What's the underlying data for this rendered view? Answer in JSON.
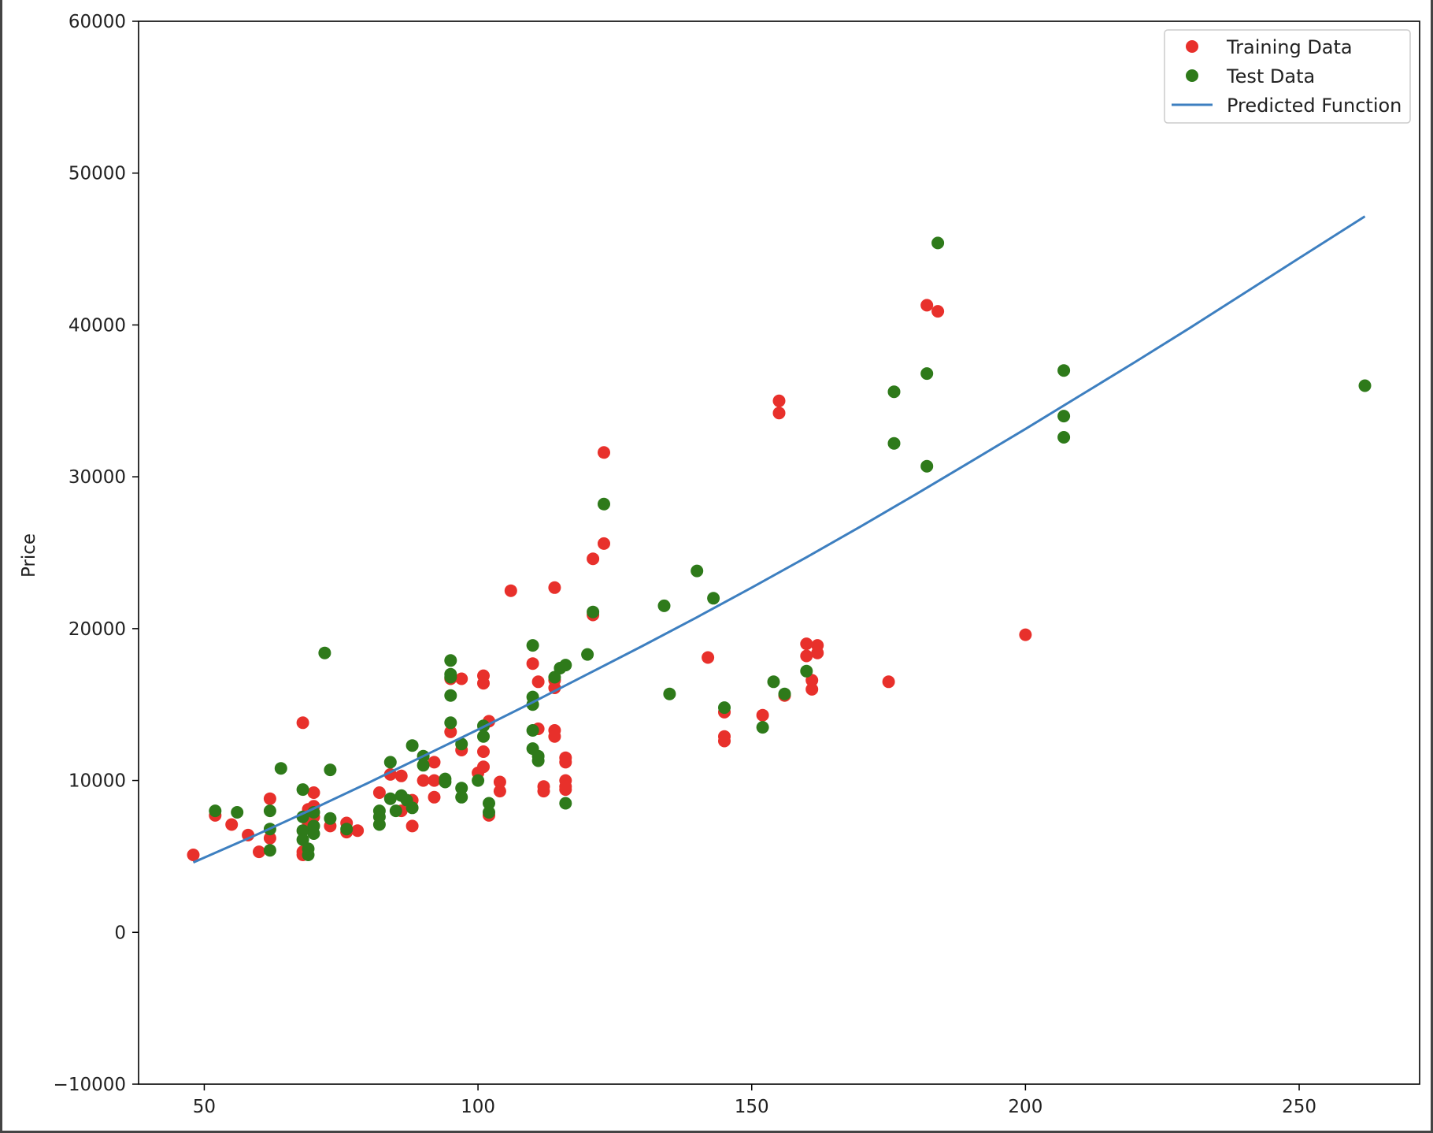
{
  "colors": {
    "training": "#e8302b",
    "test": "#2e7a1a",
    "line": "#3d7fc0",
    "axis": "#000000"
  },
  "chart_data": {
    "type": "scatter",
    "title": "",
    "xlabel": "",
    "ylabel": "Price",
    "xlim": [
      38,
      272
    ],
    "ylim": [
      -10000,
      60000
    ],
    "x_ticks": [
      50,
      100,
      150,
      200,
      250
    ],
    "y_ticks": [
      -10000,
      0,
      10000,
      20000,
      30000,
      40000,
      50000,
      60000
    ],
    "grid": false,
    "legend_position": "top-right",
    "legend": [
      "Training Data",
      "Test Data",
      "Predicted Function"
    ],
    "series": [
      {
        "name": "Training Data",
        "kind": "scatter",
        "color": "#e8302b",
        "points": [
          [
            48,
            5100
          ],
          [
            52,
            7700
          ],
          [
            55,
            7100
          ],
          [
            58,
            6400
          ],
          [
            60,
            5300
          ],
          [
            62,
            8800
          ],
          [
            62,
            6200
          ],
          [
            68,
            13800
          ],
          [
            68,
            5300
          ],
          [
            68,
            5100
          ],
          [
            69,
            7200
          ],
          [
            69,
            8100
          ],
          [
            70,
            9200
          ],
          [
            70,
            8300
          ],
          [
            70,
            7600
          ],
          [
            73,
            7000
          ],
          [
            76,
            6600
          ],
          [
            76,
            7200
          ],
          [
            78,
            6700
          ],
          [
            82,
            9200
          ],
          [
            84,
            10400
          ],
          [
            86,
            10300
          ],
          [
            86,
            8000
          ],
          [
            88,
            7000
          ],
          [
            88,
            8700
          ],
          [
            90,
            10000
          ],
          [
            92,
            10000
          ],
          [
            92,
            8900
          ],
          [
            92,
            11200
          ],
          [
            95,
            13200
          ],
          [
            95,
            16700
          ],
          [
            97,
            16700
          ],
          [
            97,
            12000
          ],
          [
            100,
            10500
          ],
          [
            101,
            16900
          ],
          [
            101,
            16400
          ],
          [
            101,
            11900
          ],
          [
            101,
            10900
          ],
          [
            102,
            7700
          ],
          [
            102,
            13900
          ],
          [
            104,
            9900
          ],
          [
            104,
            9300
          ],
          [
            106,
            22500
          ],
          [
            110,
            17700
          ],
          [
            111,
            16500
          ],
          [
            111,
            13400
          ],
          [
            112,
            9600
          ],
          [
            112,
            9300
          ],
          [
            114,
            22700
          ],
          [
            114,
            16100
          ],
          [
            114,
            16600
          ],
          [
            114,
            13300
          ],
          [
            114,
            12900
          ],
          [
            116,
            11500
          ],
          [
            116,
            11200
          ],
          [
            116,
            10000
          ],
          [
            116,
            9400
          ],
          [
            116,
            9600
          ],
          [
            121,
            24600
          ],
          [
            121,
            20900
          ],
          [
            123,
            31600
          ],
          [
            123,
            25600
          ],
          [
            142,
            18100
          ],
          [
            145,
            14500
          ],
          [
            145,
            12900
          ],
          [
            145,
            12600
          ],
          [
            152,
            14300
          ],
          [
            155,
            35000
          ],
          [
            155,
            34200
          ],
          [
            156,
            15600
          ],
          [
            160,
            19000
          ],
          [
            160,
            18200
          ],
          [
            161,
            16600
          ],
          [
            161,
            16000
          ],
          [
            162,
            18900
          ],
          [
            162,
            18400
          ],
          [
            175,
            16500
          ],
          [
            182,
            41300
          ],
          [
            184,
            40900
          ],
          [
            200,
            19600
          ]
        ]
      },
      {
        "name": "Test Data",
        "kind": "scatter",
        "color": "#2e7a1a",
        "points": [
          [
            52,
            8000
          ],
          [
            56,
            7900
          ],
          [
            62,
            8000
          ],
          [
            62,
            6800
          ],
          [
            62,
            5400
          ],
          [
            64,
            10800
          ],
          [
            68,
            9400
          ],
          [
            68,
            7600
          ],
          [
            68,
            6700
          ],
          [
            68,
            6100
          ],
          [
            69,
            5500
          ],
          [
            69,
            5100
          ],
          [
            70,
            7000
          ],
          [
            70,
            6500
          ],
          [
            70,
            7900
          ],
          [
            72,
            18400
          ],
          [
            73,
            10700
          ],
          [
            73,
            7500
          ],
          [
            76,
            6800
          ],
          [
            82,
            7100
          ],
          [
            82,
            8000
          ],
          [
            82,
            7600
          ],
          [
            84,
            11200
          ],
          [
            84,
            8800
          ],
          [
            85,
            8000
          ],
          [
            86,
            9000
          ],
          [
            87,
            8700
          ],
          [
            88,
            8200
          ],
          [
            88,
            12300
          ],
          [
            90,
            11600
          ],
          [
            90,
            11000
          ],
          [
            94,
            10100
          ],
          [
            94,
            9900
          ],
          [
            95,
            17900
          ],
          [
            95,
            17000
          ],
          [
            95,
            16800
          ],
          [
            95,
            15600
          ],
          [
            95,
            13800
          ],
          [
            97,
            9500
          ],
          [
            97,
            8900
          ],
          [
            97,
            12400
          ],
          [
            100,
            10000
          ],
          [
            101,
            13600
          ],
          [
            101,
            12900
          ],
          [
            102,
            8500
          ],
          [
            102,
            7900
          ],
          [
            110,
            18900
          ],
          [
            110,
            15500
          ],
          [
            110,
            15000
          ],
          [
            110,
            13300
          ],
          [
            110,
            12100
          ],
          [
            111,
            11600
          ],
          [
            111,
            11300
          ],
          [
            114,
            16800
          ],
          [
            115,
            17400
          ],
          [
            116,
            17600
          ],
          [
            116,
            8500
          ],
          [
            120,
            18300
          ],
          [
            121,
            21100
          ],
          [
            123,
            28200
          ],
          [
            134,
            21500
          ],
          [
            135,
            15700
          ],
          [
            140,
            23800
          ],
          [
            143,
            22000
          ],
          [
            145,
            14800
          ],
          [
            152,
            13500
          ],
          [
            154,
            16500
          ],
          [
            156,
            15700
          ],
          [
            160,
            17200
          ],
          [
            176,
            35600
          ],
          [
            176,
            32200
          ],
          [
            182,
            36800
          ],
          [
            182,
            30700
          ],
          [
            184,
            45400
          ],
          [
            207,
            37000
          ],
          [
            207,
            34000
          ],
          [
            207,
            32600
          ],
          [
            262,
            36000
          ]
        ]
      },
      {
        "name": "Predicted Function",
        "kind": "line",
        "color": "#3d7fc0",
        "points": [
          [
            48,
            4600
          ],
          [
            60,
            6500
          ],
          [
            70,
            8150
          ],
          [
            80,
            9850
          ],
          [
            90,
            11600
          ],
          [
            100,
            13350
          ],
          [
            110,
            15150
          ],
          [
            120,
            17000
          ],
          [
            130,
            18850
          ],
          [
            140,
            20750
          ],
          [
            150,
            22700
          ],
          [
            160,
            24700
          ],
          [
            170,
            26750
          ],
          [
            180,
            28850
          ],
          [
            190,
            31000
          ],
          [
            200,
            33150
          ],
          [
            210,
            35350
          ],
          [
            220,
            37550
          ],
          [
            230,
            39800
          ],
          [
            240,
            42100
          ],
          [
            250,
            44400
          ],
          [
            262,
            47150
          ]
        ]
      }
    ]
  }
}
